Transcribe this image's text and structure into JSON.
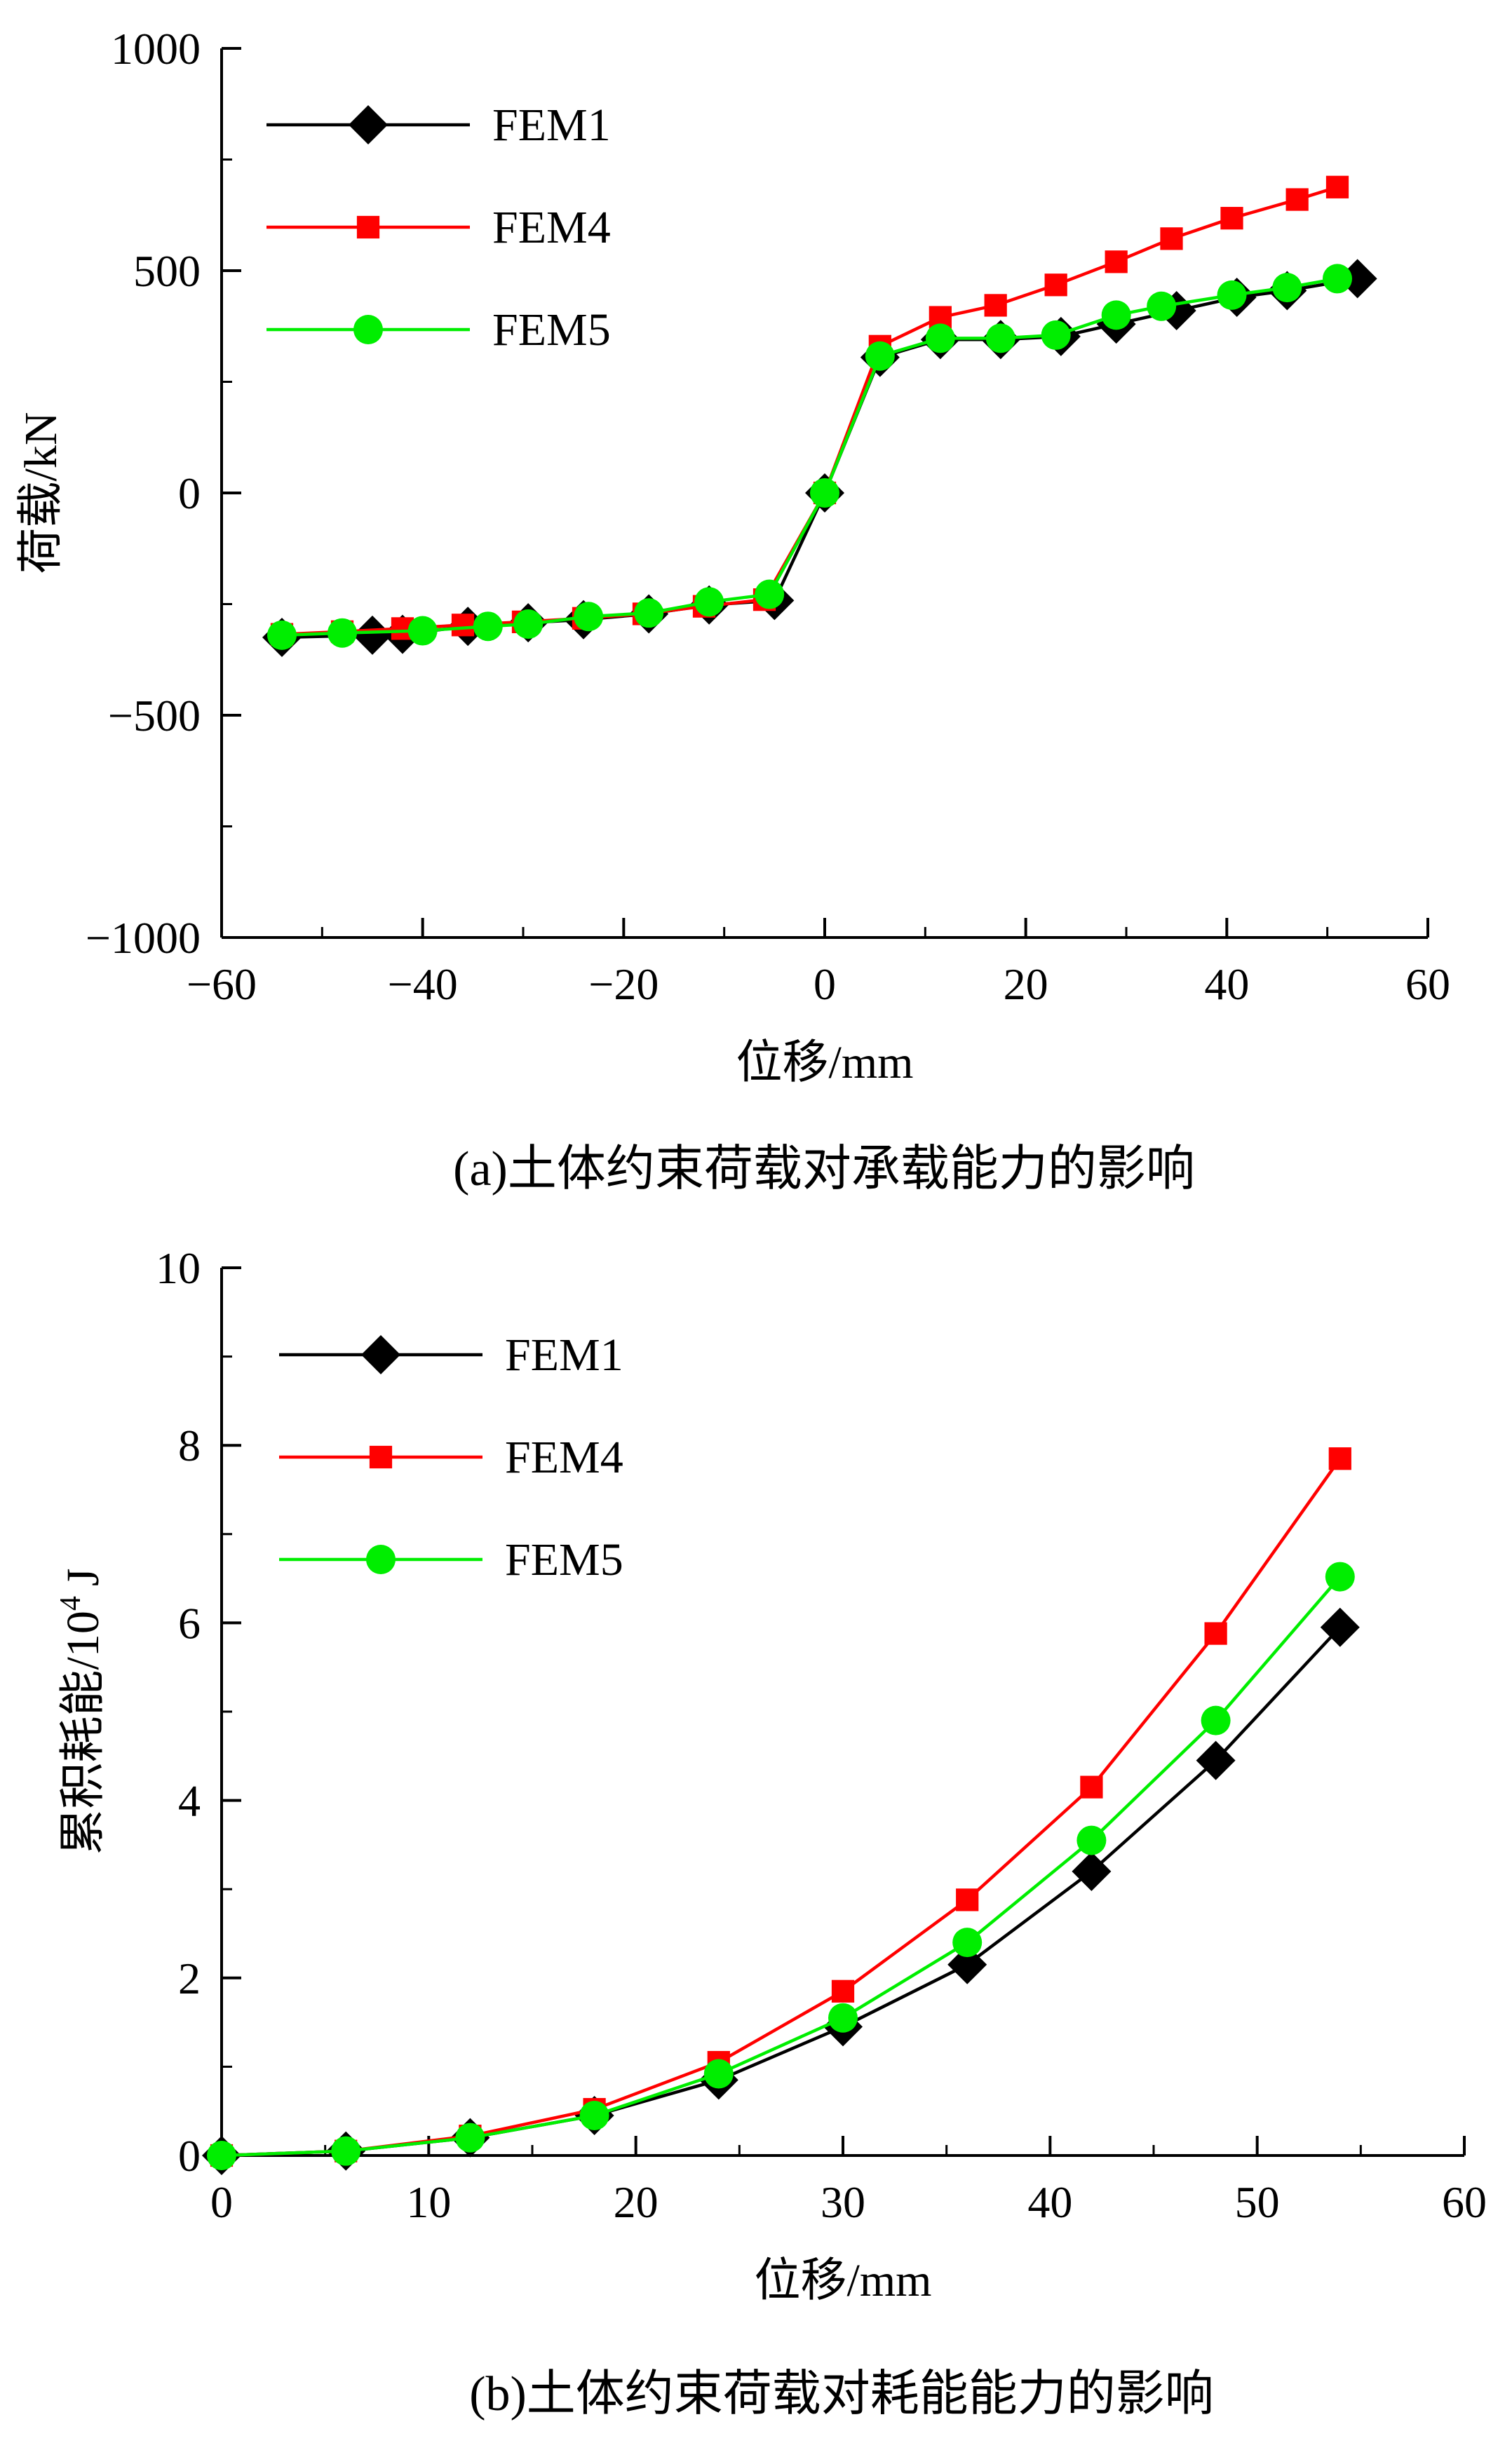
{
  "chart_data": [
    {
      "type": "line",
      "caption": "(a)土体约束荷载对承载能力的影响",
      "xlabel": "位移/mm",
      "ylabel": "荷载/kN",
      "xlim": [
        -60,
        60
      ],
      "ylim": [
        -1000,
        1000
      ],
      "xticks": [
        "−60",
        "−40",
        "−20",
        "0",
        "20",
        "40",
        "60"
      ],
      "yticks": [
        "1000",
        "500",
        "0",
        "−500",
        "−1000"
      ],
      "legend_position": "top-left",
      "grid": false,
      "series": [
        {
          "name": "FEM1",
          "color": "#000000",
          "marker": "diamond",
          "x": [
            -54,
            -45,
            -42,
            -35.5,
            -29.5,
            -24,
            -17.5,
            -11.5,
            -5,
            0,
            5.5,
            11.5,
            17.5,
            23.5,
            29,
            35,
            41,
            46,
            53
          ],
          "y": [
            -325,
            -320,
            -318,
            -300,
            -292,
            -285,
            -272,
            -252,
            -242,
            0,
            305,
            345,
            345,
            352,
            380,
            410,
            440,
            455,
            482
          ]
        },
        {
          "name": "FEM4",
          "color": "#ff0000",
          "marker": "square",
          "x": [
            -54,
            -48,
            -42,
            -36,
            -30,
            -24,
            -18,
            -12,
            -6,
            0,
            5.5,
            11.5,
            17,
            23,
            29,
            34.5,
            40.5,
            47,
            51
          ],
          "y": [
            -318,
            -312,
            -305,
            -297,
            -290,
            -282,
            -272,
            -255,
            -240,
            0,
            330,
            395,
            422,
            468,
            520,
            572,
            618,
            660,
            688
          ]
        },
        {
          "name": "FEM5",
          "color": "#00ee00",
          "marker": "circle",
          "x": [
            -54,
            -48,
            -40,
            -33.5,
            -29.5,
            -23.5,
            -17.5,
            -11.5,
            -5.5,
            0,
            5.5,
            11.5,
            17.5,
            23,
            29,
            33.5,
            40.5,
            46,
            51
          ],
          "y": [
            -320,
            -315,
            -310,
            -300,
            -295,
            -278,
            -270,
            -245,
            -228,
            0,
            308,
            348,
            348,
            355,
            400,
            420,
            445,
            462,
            482
          ]
        }
      ]
    },
    {
      "type": "line",
      "caption": "(b)土体约束荷载对耗能能力的影响",
      "xlabel": "位移/mm",
      "ylabel": "累积耗能/10",
      "ylabel_exponent": "4",
      "ylabel_unit": "J",
      "xlim": [
        0,
        60
      ],
      "ylim": [
        0,
        10
      ],
      "xticks": [
        "0",
        "10",
        "20",
        "30",
        "40",
        "50",
        "60"
      ],
      "yticks": [
        "10",
        "8",
        "6",
        "4",
        "2",
        "0"
      ],
      "legend_position": "top-left",
      "grid": false,
      "series": [
        {
          "name": "FEM1",
          "color": "#000000",
          "marker": "diamond",
          "x": [
            0,
            6,
            12,
            18,
            24,
            30,
            36,
            42,
            48,
            54
          ],
          "y": [
            0,
            0.05,
            0.2,
            0.45,
            0.85,
            1.45,
            2.15,
            3.2,
            4.45,
            5.95
          ]
        },
        {
          "name": "FEM4",
          "color": "#ff0000",
          "marker": "square",
          "x": [
            0,
            6,
            12,
            18,
            24,
            30,
            36,
            42,
            48,
            54
          ],
          "y": [
            0,
            0.05,
            0.22,
            0.52,
            1.05,
            1.85,
            2.88,
            4.15,
            5.88,
            7.85
          ]
        },
        {
          "name": "FEM5",
          "color": "#00ee00",
          "marker": "circle",
          "x": [
            0,
            6,
            12,
            18,
            24,
            30,
            36,
            42,
            48,
            54
          ],
          "y": [
            0,
            0.05,
            0.2,
            0.45,
            0.92,
            1.55,
            2.4,
            3.55,
            4.9,
            6.52
          ]
        }
      ]
    }
  ]
}
